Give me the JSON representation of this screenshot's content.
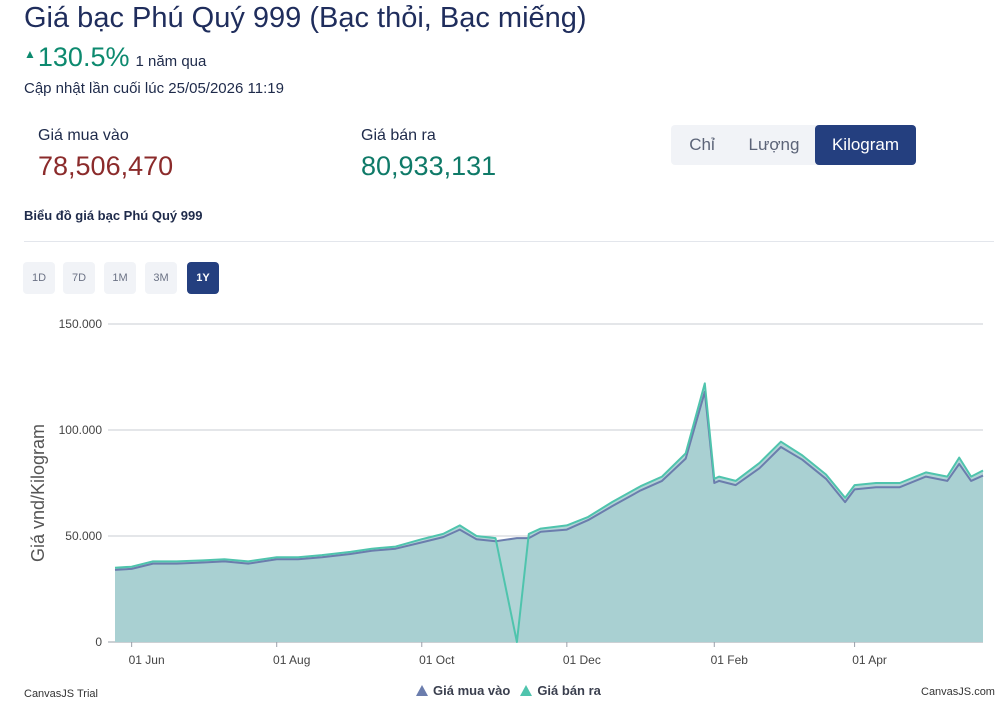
{
  "header": {
    "title": "Giá bạc Phú Quý 999 (Bạc thỏi, Bạc miếng)",
    "change_arrow_icon": "triangle-up-icon",
    "change": "130.5%",
    "period": "1 năm qua",
    "updated": "Cập nhật lần cuối lúc 25/05/2026 11:19"
  },
  "prices": {
    "buy_label": "Giá mua vào",
    "buy_value": "78,506,470",
    "sell_label": "Giá bán ra",
    "sell_value": "80,933,131"
  },
  "units": {
    "options": [
      "Chỉ",
      "Lượng",
      "Kilogram"
    ],
    "selected": "Kilogram"
  },
  "chart_section": {
    "title": "Biểu đồ giá bạc Phú Quý 999",
    "ranges": [
      "1D",
      "7D",
      "1M",
      "3M",
      "1Y"
    ],
    "selected_range": "1Y"
  },
  "chart_data": {
    "type": "area",
    "ylabel": "Giá vnd/Kilogram",
    "ylim": [
      0,
      150000
    ],
    "y_ticks": [
      "0",
      "50.000",
      "100.000",
      "150.000"
    ],
    "x_ticks": [
      "01 Jun",
      "01 Aug",
      "01 Oct",
      "01 Dec",
      "01 Feb",
      "01 Apr"
    ],
    "x_range": [
      "2025-05-25",
      "2026-05-25"
    ],
    "grid": true,
    "legend_position": "bottom",
    "series": [
      {
        "name": "Giá mua vào",
        "color": "#6b7dad",
        "x": [
          "2025-05-25",
          "2025-06-01",
          "2025-06-10",
          "2025-06-20",
          "2025-07-01",
          "2025-07-10",
          "2025-07-20",
          "2025-08-01",
          "2025-08-10",
          "2025-08-20",
          "2025-09-01",
          "2025-09-10",
          "2025-09-20",
          "2025-10-01",
          "2025-10-10",
          "2025-10-17",
          "2025-10-24",
          "2025-11-01",
          "2025-11-10",
          "2025-11-15",
          "2025-11-20",
          "2025-12-01",
          "2025-12-10",
          "2025-12-20",
          "2026-01-01",
          "2026-01-10",
          "2026-01-20",
          "2026-01-28",
          "2026-02-01",
          "2026-02-03",
          "2026-02-10",
          "2026-02-20",
          "2026-03-01",
          "2026-03-10",
          "2026-03-20",
          "2026-03-28",
          "2026-04-01",
          "2026-04-10",
          "2026-04-20",
          "2026-05-01",
          "2026-05-10",
          "2026-05-15",
          "2026-05-20",
          "2026-05-25"
        ],
        "values": [
          34000,
          34500,
          37000,
          37000,
          37500,
          38000,
          37000,
          39000,
          39000,
          40000,
          41500,
          43000,
          44000,
          47000,
          49500,
          53000,
          48500,
          47500,
          49000,
          49000,
          52000,
          53000,
          57500,
          64000,
          71500,
          76000,
          86500,
          118000,
          75000,
          76000,
          74000,
          82000,
          92000,
          86000,
          77000,
          66000,
          72000,
          73000,
          73000,
          78000,
          76000,
          84000,
          76000,
          78500
        ]
      },
      {
        "name": "Giá bán ra",
        "color": "#4fc4ad",
        "x": [
          "2025-05-25",
          "2025-06-01",
          "2025-06-10",
          "2025-06-20",
          "2025-07-01",
          "2025-07-10",
          "2025-07-20",
          "2025-08-01",
          "2025-08-10",
          "2025-08-20",
          "2025-09-01",
          "2025-09-10",
          "2025-09-20",
          "2025-10-01",
          "2025-10-10",
          "2025-10-17",
          "2025-10-24",
          "2025-11-01",
          "2025-11-10",
          "2025-11-15",
          "2025-11-20",
          "2025-12-01",
          "2025-12-10",
          "2025-12-20",
          "2026-01-01",
          "2026-01-10",
          "2026-01-20",
          "2026-01-28",
          "2026-02-01",
          "2026-02-03",
          "2026-02-10",
          "2026-02-20",
          "2026-03-01",
          "2026-03-10",
          "2026-03-20",
          "2026-03-28",
          "2026-04-01",
          "2026-04-10",
          "2026-04-20",
          "2026-05-01",
          "2026-05-10",
          "2026-05-15",
          "2026-05-20",
          "2026-05-25"
        ],
        "values": [
          35000,
          35500,
          38000,
          38000,
          38500,
          39000,
          38000,
          40000,
          40000,
          41000,
          42500,
          44000,
          45000,
          48500,
          51000,
          55000,
          50000,
          49000,
          0,
          51000,
          53500,
          55000,
          59000,
          66000,
          73500,
          78000,
          89000,
          122000,
          77000,
          78000,
          76000,
          84500,
          94500,
          88000,
          79000,
          68000,
          74000,
          75000,
          75000,
          80000,
          78000,
          87000,
          78000,
          80900
        ]
      }
    ]
  },
  "footer": {
    "trial": "CanvasJS Trial",
    "brand": "CanvasJS.com"
  }
}
